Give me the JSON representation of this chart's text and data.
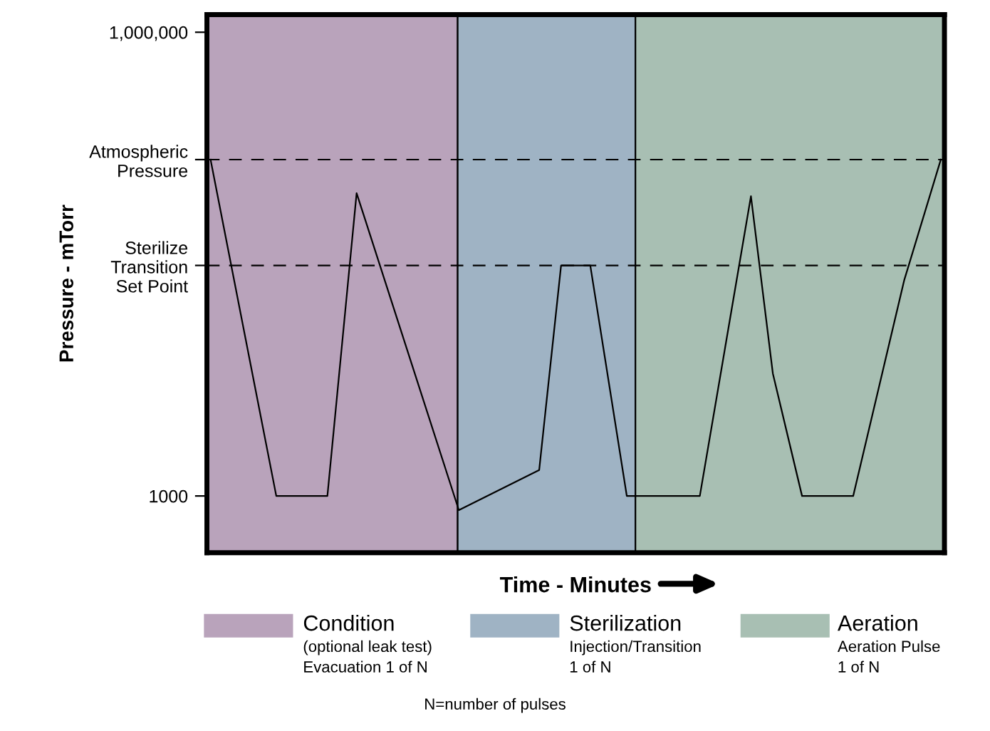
{
  "chart_data": {
    "type": "line",
    "ylabel": "Pressure - mTorr",
    "xlabel": "Time - Minutes",
    "categories": [
      null,
      null,
      null,
      null,
      null,
      null,
      null,
      null,
      null,
      null,
      null,
      null,
      null,
      null,
      null,
      null,
      null,
      null,
      null,
      null,
      null,
      null,
      null,
      null,
      null,
      null,
      null,
      null,
      null,
      null,
      null,
      null,
      null,
      null,
      null,
      null,
      null,
      null,
      null,
      null,
      null,
      null,
      null,
      null,
      null,
      null,
      null,
      null,
      null,
      null,
      null,
      null,
      null,
      null,
      null,
      null,
      null,
      null,
      null,
      null,
      null,
      null,
      null,
      null,
      null,
      null,
      null,
      null,
      null,
      null,
      null,
      null,
      null,
      null,
      null,
      null,
      null,
      null,
      null,
      null,
      null,
      null,
      null,
      null,
      null,
      null,
      null,
      null,
      null,
      null,
      null,
      null,
      null,
      null,
      null,
      null,
      null,
      null,
      null,
      null,
      null
    ],
    "series": [
      {
        "color": "#000000",
        "values": [
          150000,
          null,
          null,
          null,
          null,
          null,
          null,
          null,
          null,
          1000,
          null,
          null,
          null,
          null,
          null,
          null,
          1000,
          null,
          null,
          null,
          91000,
          null,
          null,
          null,
          null,
          null,
          null,
          null,
          null,
          null,
          null,
          null,
          null,
          null,
          810,
          null,
          null,
          null,
          null,
          null,
          null,
          null,
          null,
          null,
          null,
          1470,
          null,
          null,
          31000,
          null,
          null,
          null,
          31000,
          null,
          null,
          null,
          null,
          1000,
          null,
          null,
          null,
          null,
          null,
          null,
          null,
          null,
          null,
          1000,
          null,
          null,
          null,
          null,
          null,
          null,
          87000,
          null,
          null,
          6200,
          null,
          null,
          null,
          1000,
          null,
          null,
          null,
          null,
          null,
          null,
          1000,
          null,
          null,
          null,
          null,
          null,
          null,
          25000,
          null,
          null,
          null,
          null,
          150000
        ]
      }
    ],
    "log": "y",
    "ylim": [
      430,
      1300000
    ],
    "yticks": [
      {
        "value": 1000,
        "label": "1000"
      },
      {
        "value": 31000,
        "label": "Sterilize\nTransition\nSet Point"
      },
      {
        "value": 150000,
        "label": "Atmospheric\nPressure"
      },
      {
        "value": 1000000,
        "label": "1,000,000"
      }
    ],
    "tick_labels": "y",
    "grid": false,
    "marker": "none",
    "line_style": "solid",
    "ref_lines": [
      {
        "axis": "y",
        "value": 150000,
        "color": "#000000",
        "line_style": "dashed"
      },
      {
        "axis": "y",
        "value": 31000,
        "color": "#000000",
        "line_style": "dashed"
      }
    ],
    "annotations": [
      "Condition",
      "(optional leak test)\nEvacuation 1 of N",
      "Sterilization",
      "Injection/Transition\n1 of N",
      "Aeration",
      "Aeration Pulse\n1 of N",
      "N=number of pulses"
    ]
  }
}
